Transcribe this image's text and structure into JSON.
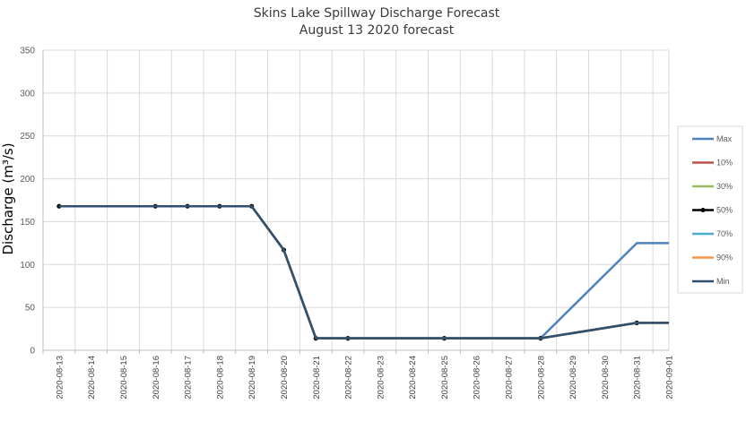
{
  "chart_data": {
    "type": "line",
    "title": "Skins Lake Spillway Discharge Forecast",
    "subtitle": "August 13 2020 forecast",
    "ylabel": "Discharge (m³/s)",
    "xlabel": "",
    "ylim": [
      0,
      350
    ],
    "yticks": [
      "0",
      "50",
      "100",
      "150",
      "200",
      "250",
      "300",
      "350"
    ],
    "categories": [
      "2020-08-13",
      "2020-08-14",
      "2020-08-15",
      "2020-08-16",
      "2020-08-17",
      "2020-08-18",
      "2020-08-19",
      "2020-08-20",
      "2020-08-21",
      "2020-08-22",
      "2020-08-23",
      "2020-08-24",
      "2020-08-25",
      "2020-08-26",
      "2020-08-27",
      "2020-08-28",
      "2020-08-29",
      "2020-08-30",
      "2020-08-31",
      "2020-09-01"
    ],
    "grid": true,
    "legend_position": "right",
    "series": [
      {
        "name": "Max",
        "color": "#4f81bd",
        "marker": false,
        "values": [
          168,
          168,
          168,
          168,
          168,
          168,
          168,
          117,
          14,
          14,
          14,
          14,
          14,
          14,
          14,
          14,
          51,
          88,
          125,
          125
        ]
      },
      {
        "name": "10%",
        "color": "#c0504d",
        "marker": false,
        "values": [
          168,
          168,
          168,
          168,
          168,
          168,
          168,
          117,
          14,
          14,
          14,
          14,
          14,
          14,
          14,
          14,
          20,
          26,
          32,
          32
        ]
      },
      {
        "name": "30%",
        "color": "#9bbb59",
        "marker": false,
        "values": [
          168,
          168,
          168,
          168,
          168,
          168,
          168,
          117,
          14,
          14,
          14,
          14,
          14,
          14,
          14,
          14,
          20,
          26,
          32,
          32
        ]
      },
      {
        "name": "50%",
        "color": "#000000",
        "marker": true,
        "values": [
          168,
          null,
          null,
          168,
          168,
          168,
          168,
          117,
          14,
          14,
          null,
          null,
          14,
          null,
          null,
          14,
          null,
          null,
          32,
          null
        ]
      },
      {
        "name": "70%",
        "color": "#4bacc6",
        "marker": false,
        "values": [
          168,
          168,
          168,
          168,
          168,
          168,
          168,
          117,
          14,
          14,
          14,
          14,
          14,
          14,
          14,
          14,
          20,
          26,
          32,
          32
        ]
      },
      {
        "name": "90%",
        "color": "#f79646",
        "marker": false,
        "values": [
          168,
          168,
          168,
          168,
          168,
          168,
          168,
          117,
          14,
          14,
          14,
          14,
          14,
          14,
          14,
          14,
          20,
          26,
          32,
          32
        ]
      },
      {
        "name": "Min",
        "color": "#2f4f6f",
        "marker": false,
        "values": [
          168,
          168,
          168,
          168,
          168,
          168,
          168,
          117,
          14,
          14,
          14,
          14,
          14,
          14,
          14,
          14,
          20,
          26,
          32,
          32
        ]
      }
    ]
  }
}
